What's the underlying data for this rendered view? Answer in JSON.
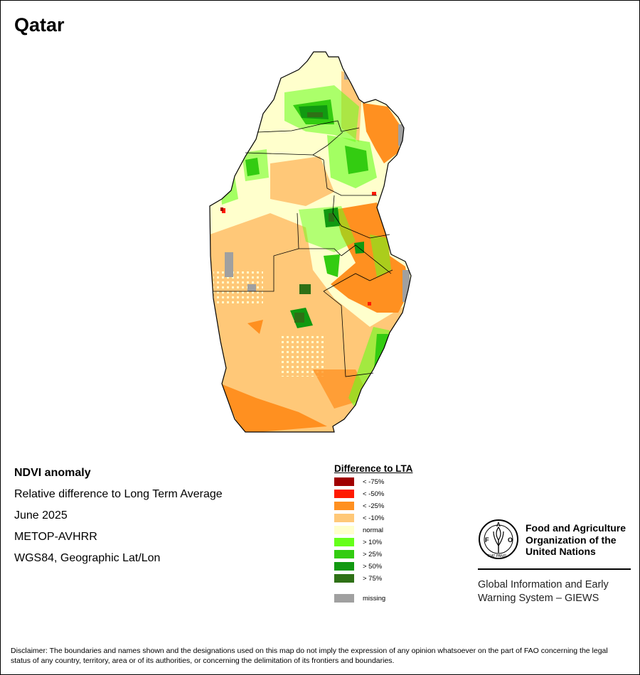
{
  "title": "Qatar",
  "info": {
    "product": "NDVI anomaly",
    "description": "Relative difference to Long Term Average",
    "period": "June 2025",
    "sensor": "METOP-AVHRR",
    "projection": "WGS84, Geographic Lat/Lon"
  },
  "legend": {
    "title": "Difference to LTA",
    "items": [
      {
        "label": "< -75%",
        "color": "#a00000"
      },
      {
        "label": "< -50%",
        "color": "#ff1a00"
      },
      {
        "label": "< -25%",
        "color": "#ff9020"
      },
      {
        "label": "< -10%",
        "color": "#ffc878"
      },
      {
        "label": "normal",
        "color": "#ffffcc"
      },
      {
        "label": "> 10%",
        "color": "#66ff1a"
      },
      {
        "label": "> 25%",
        "color": "#33cc11"
      },
      {
        "label": "> 50%",
        "color": "#119911"
      },
      {
        "label": "> 75%",
        "color": "#2e7016"
      }
    ],
    "missing": {
      "label": "missing",
      "color": "#a0a0a0"
    }
  },
  "logo": {
    "name_line1": "Food and Agriculture",
    "name_line2": "Organization of the",
    "name_line3": "United Nations",
    "emblem_text": "FAO",
    "motto": "FIAT PANIS",
    "system_line1": "Global Information and Early",
    "system_line2": "Warning System – GIEWS"
  },
  "disclaimer": "Disclaimer: The boundaries and names shown and the designations used on this map do not imply the expression of any opinion whatsoever on the part of FAO concerning the legal status of any country, territory, area or of its authorities, or concerning the delimitation of its frontiers and boundaries."
}
